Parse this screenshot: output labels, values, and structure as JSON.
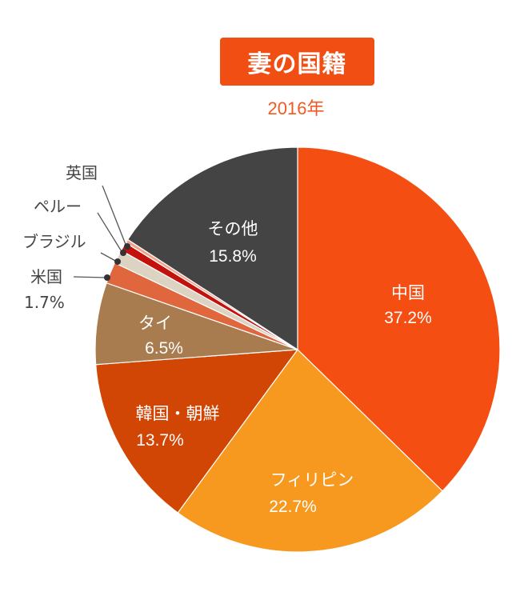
{
  "header": {
    "title": "妻の国籍",
    "subtitle": "2016年"
  },
  "colors": {
    "title_bg": "#f04e13",
    "subtitle_text": "#f05a23"
  },
  "chart_data": {
    "type": "pie",
    "title": "妻の国籍",
    "subtitle": "2016年",
    "start_angle": "12 o'clock, clockwise",
    "slices": [
      {
        "label": "中国",
        "value": 37.2,
        "display": "37.2%",
        "color": "#f44e12"
      },
      {
        "label": "フィリピン",
        "value": 22.7,
        "display": "22.7%",
        "color": "#f7991e"
      },
      {
        "label": "韓国・朝鮮",
        "value": 13.7,
        "display": "13.7%",
        "color": "#d24605"
      },
      {
        "label": "タイ",
        "value": 6.5,
        "display": "6.5%",
        "color": "#a87c4f"
      },
      {
        "label": "米国",
        "value": 1.7,
        "display": "1.7%",
        "color": "#e0663e"
      },
      {
        "label": "ブラジル",
        "value": 1.1,
        "display": "",
        "color": "#ddd3c3"
      },
      {
        "label": "ペルー",
        "value": 0.7,
        "display": "",
        "color": "#c3120e"
      },
      {
        "label": "英国",
        "value": 0.3,
        "display": "",
        "color": "#f2a48a"
      },
      {
        "label": "その他",
        "value": 15.8,
        "display": "15.8%",
        "color": "#444444"
      }
    ]
  },
  "labels": {
    "china": {
      "name": "中国",
      "pct": "37.2%"
    },
    "philippines": {
      "name": "フィリピン",
      "pct": "22.7%"
    },
    "korea": {
      "name": "韓国・朝鮮",
      "pct": "13.7%"
    },
    "thailand": {
      "name": "タイ",
      "pct": "6.5%"
    },
    "usa": {
      "name": "米国",
      "pct": "1.7%"
    },
    "brazil": {
      "name": "ブラジル"
    },
    "peru": {
      "name": "ペルー"
    },
    "uk": {
      "name": "英国"
    },
    "other": {
      "name": "その他",
      "pct": "15.8%"
    }
  }
}
